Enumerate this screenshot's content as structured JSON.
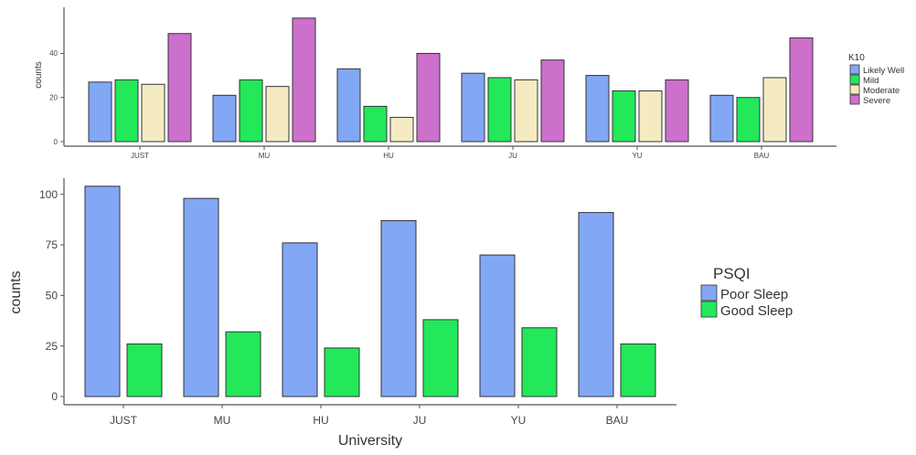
{
  "chart_data": [
    {
      "type": "bar",
      "categories": [
        "JUST",
        "MU",
        "HU",
        "JU",
        "YU",
        "BAU"
      ],
      "series": [
        {
          "name": "Likely Well",
          "color": "#82a7f5",
          "values": [
            27,
            21,
            33,
            31,
            30,
            21
          ]
        },
        {
          "name": "Mild",
          "color": "#22e85a",
          "values": [
            28,
            28,
            16,
            29,
            23,
            20
          ]
        },
        {
          "name": "Moderate",
          "color": "#f5ebc2",
          "values": [
            26,
            25,
            11,
            28,
            23,
            29
          ]
        },
        {
          "name": "Severe",
          "color": "#cc70cc",
          "values": [
            49,
            56,
            40,
            37,
            28,
            47
          ]
        }
      ],
      "ylabel": "counts",
      "xlabel": "",
      "yticks": [
        0,
        20,
        40
      ],
      "ylim": [
        0,
        58
      ],
      "legend_title": "K10",
      "legend_position": "right",
      "grid": false
    },
    {
      "type": "bar",
      "categories": [
        "JUST",
        "MU",
        "HU",
        "JU",
        "YU",
        "BAU"
      ],
      "series": [
        {
          "name": "Poor Sleep",
          "color": "#82a7f5",
          "values": [
            104,
            98,
            76,
            87,
            70,
            91
          ]
        },
        {
          "name": "Good Sleep",
          "color": "#22e85a",
          "values": [
            26,
            32,
            24,
            38,
            34,
            26
          ]
        }
      ],
      "ylabel": "counts",
      "xlabel": "University",
      "yticks": [
        0,
        25,
        50,
        75,
        100
      ],
      "ylim": [
        0,
        108
      ],
      "legend_title": "PSQI",
      "legend_position": "right",
      "grid": false
    }
  ]
}
